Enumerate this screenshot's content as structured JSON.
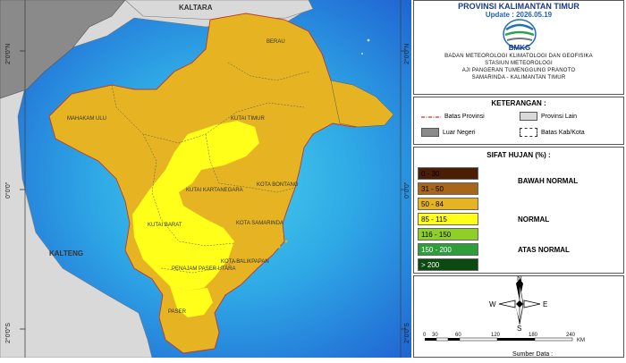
{
  "map": {
    "lat_labels": [
      "2°0'0\"N",
      "0°0'0\"",
      "2°0'0\"S"
    ],
    "regions": {
      "kaltara": "KALTARA",
      "kalteng": "KALTENG",
      "berau": "BERAU",
      "mahakam_ulu": "MAHAKAM ULU",
      "kutai_timur": "KUTAI TIMUR",
      "kutai_kartanegara": "KUTAI KARTANEGARA",
      "kota_bontang": "KOTA BONTANG",
      "kutai_barat": "KUTAI BARAT",
      "kota_samarinda": "KOTA SAMARINDA",
      "kota_balikpapan": "KOTA BALIKPAPAN",
      "penajam": "PENAJAM PASER UTARA",
      "paser": "PASER"
    },
    "colors": {
      "sea_deep": "#1e5fd1",
      "sea_light": "#3cc6e8",
      "other_province": "#d9d9d9",
      "foreign": "#8a8a8a",
      "rain_50_84": "#e6b422",
      "rain_85_115": "#ffff1a"
    }
  },
  "header": {
    "title": "PROVINSI KALIMANTAN TIMUR",
    "update": "Update : 2026.05.19",
    "logo_text": "BMKG",
    "org_lines": [
      "BADAN METEOROLOGI KLIMATOLOGI DAN GEOFISIKA",
      "STASIUN METEOROLOGI",
      "AJI PANGERAN TUMENGGUNG PRANOTO",
      "SAMARINDA - KALIMANTAN TIMUR"
    ]
  },
  "keterangan": {
    "heading": "KETERANGAN :",
    "items": [
      {
        "label": "Batas Provinsi",
        "kind": "line-red"
      },
      {
        "label": "Provinsi Lain",
        "kind": "box-light"
      },
      {
        "label": "Luar Negeri",
        "kind": "box-dark"
      },
      {
        "label": "Batas Kab/Kota",
        "kind": "box-dashed"
      }
    ]
  },
  "sifat_hujan": {
    "heading": "SIFAT HUJAN (%) :",
    "classes": [
      {
        "label": "0 - 30",
        "color": "#4a1e05"
      },
      {
        "label": "31 - 50",
        "color": "#a8661a"
      },
      {
        "label": "50 - 84",
        "color": "#e6b422"
      },
      {
        "label": "85 - 115",
        "color": "#ffff1a"
      },
      {
        "label": "116 - 150",
        "color": "#8fcf2a"
      },
      {
        "label": "150 - 200",
        "color": "#2e9e3a"
      },
      {
        "label": "> 200",
        "color": "#0d4a12"
      }
    ],
    "categories": [
      "BAWAH NORMAL",
      "NORMAL",
      "ATAS NORMAL"
    ]
  },
  "compass": {
    "n": "N",
    "s": "S",
    "e": "E",
    "w": "W"
  },
  "scale": {
    "ticks": [
      "0",
      "30",
      "60",
      "120",
      "180",
      "240"
    ],
    "unit": "KM"
  },
  "source": "Sumber Data :"
}
